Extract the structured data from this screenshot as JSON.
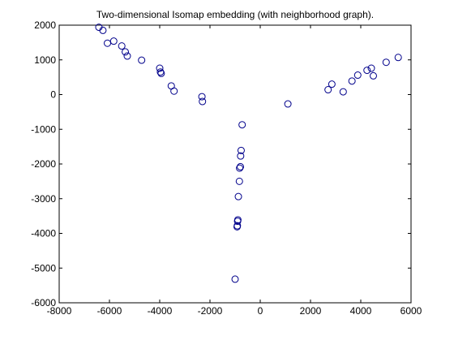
{
  "chart_data": {
    "type": "scatter",
    "title": "Two-dimensional Isomap embedding (with neighborhood graph).",
    "xlabel": "",
    "ylabel": "",
    "xlim": [
      -8000,
      6000
    ],
    "ylim": [
      -6000,
      2000
    ],
    "x_ticks": [
      -8000,
      -6000,
      -4000,
      -2000,
      0,
      2000,
      4000,
      6000
    ],
    "y_ticks": [
      -6000,
      -5000,
      -4000,
      -3000,
      -2000,
      -1000,
      0,
      1000,
      2000
    ],
    "x_tick_labels": [
      "-8000",
      "-6000",
      "-4000",
      "-2000",
      "0",
      "2000",
      "4000",
      "6000"
    ],
    "y_tick_labels": [
      "-6000",
      "-5000",
      "-4000",
      "-3000",
      "-2000",
      "-1000",
      "0",
      "1000",
      "2000"
    ],
    "grid": false,
    "legend": "none",
    "marker": "circle-open",
    "marker_color": "#00008b",
    "series": [
      {
        "points": [
          {
            "x": -6420,
            "y": 1940
          },
          {
            "x": -6260,
            "y": 1850
          },
          {
            "x": -6080,
            "y": 1480
          },
          {
            "x": -5830,
            "y": 1540
          },
          {
            "x": -5510,
            "y": 1400
          },
          {
            "x": -5370,
            "y": 1230
          },
          {
            "x": -5290,
            "y": 1110
          },
          {
            "x": -4720,
            "y": 990
          },
          {
            "x": -4000,
            "y": 760
          },
          {
            "x": -3970,
            "y": 650
          },
          {
            "x": -3940,
            "y": 610
          },
          {
            "x": -3540,
            "y": 250
          },
          {
            "x": -3430,
            "y": 100
          },
          {
            "x": -2320,
            "y": -60
          },
          {
            "x": -2300,
            "y": -200
          },
          {
            "x": -720,
            "y": -870
          },
          {
            "x": -760,
            "y": -1610
          },
          {
            "x": -780,
            "y": -1770
          },
          {
            "x": -790,
            "y": -2080
          },
          {
            "x": -820,
            "y": -2120
          },
          {
            "x": -830,
            "y": -2500
          },
          {
            "x": -870,
            "y": -2940
          },
          {
            "x": -890,
            "y": -3610
          },
          {
            "x": -900,
            "y": -3650
          },
          {
            "x": -910,
            "y": -3780
          },
          {
            "x": -920,
            "y": -3810
          },
          {
            "x": -1000,
            "y": -5320
          },
          {
            "x": 1100,
            "y": -270
          },
          {
            "x": 2700,
            "y": 140
          },
          {
            "x": 2850,
            "y": 300
          },
          {
            "x": 3300,
            "y": 80
          },
          {
            "x": 3650,
            "y": 390
          },
          {
            "x": 3880,
            "y": 560
          },
          {
            "x": 4250,
            "y": 700
          },
          {
            "x": 4420,
            "y": 760
          },
          {
            "x": 4500,
            "y": 540
          },
          {
            "x": 5010,
            "y": 930
          },
          {
            "x": 5490,
            "y": 1070
          }
        ]
      }
    ]
  }
}
